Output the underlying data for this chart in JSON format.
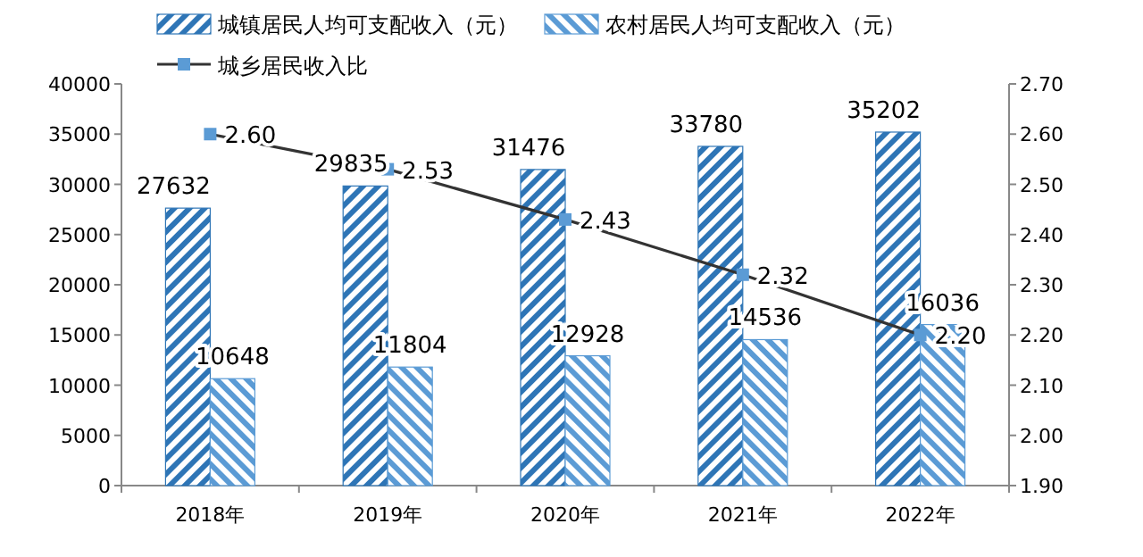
{
  "chart_data": {
    "type": "bar",
    "categories": [
      "2018年",
      "2019年",
      "2020年",
      "2021年",
      "2022年"
    ],
    "series": [
      {
        "name": "城镇居民人均可支配收入（元）",
        "color": "#2e75b6",
        "values": [
          27632,
          29835,
          31476,
          33780,
          35202
        ]
      },
      {
        "name": "农村居民人均可支配收入（元）",
        "color": "#5b9bd5",
        "values": [
          10648,
          11804,
          12928,
          14536,
          16036
        ]
      },
      {
        "name": "城乡居民收入比",
        "type": "line",
        "axis": "y2",
        "color": "#5b9bd5",
        "marker": "square",
        "values": [
          2.6,
          2.53,
          2.43,
          2.32,
          2.2
        ],
        "value_labels": [
          "2.60",
          "2.53",
          "2.43",
          "2.32",
          "2.20"
        ]
      }
    ],
    "ylim": [
      0,
      40000
    ],
    "yticks": [
      0,
      5000,
      10000,
      15000,
      20000,
      25000,
      30000,
      35000,
      40000
    ],
    "y2lim": [
      1.9,
      2.7
    ],
    "y2ticks": [
      {
        "value": 1.9,
        "label": "1.90"
      },
      {
        "value": 2.0,
        "label": "2.00"
      },
      {
        "value": 2.1,
        "label": "2.10"
      },
      {
        "value": 2.2,
        "label": "2.20"
      },
      {
        "value": 2.3,
        "label": "2.30"
      },
      {
        "value": 2.4,
        "label": "2.40"
      },
      {
        "value": 2.5,
        "label": "2.50"
      },
      {
        "value": 2.6,
        "label": "2.60"
      },
      {
        "value": 2.7,
        "label": "2.70"
      }
    ],
    "data_labels": true,
    "legend": "top",
    "grid": false
  }
}
